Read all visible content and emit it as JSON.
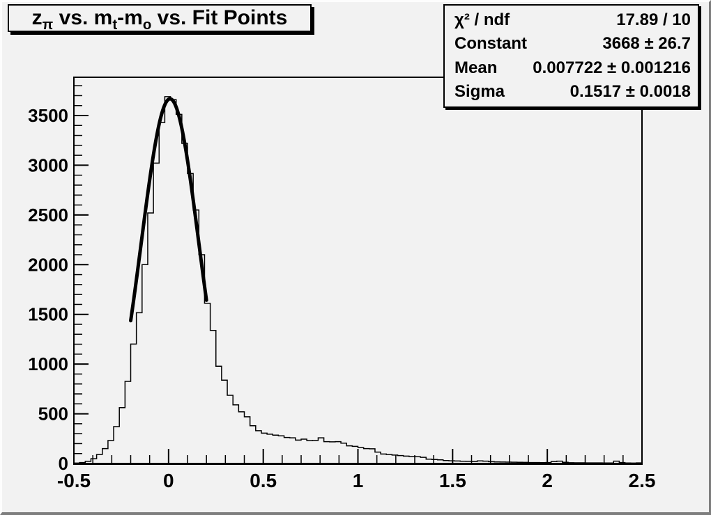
{
  "canvas": {
    "background": "#f2f2f2",
    "frame_color": "#000000",
    "histogram_line_color": "#000000",
    "fit_line_color": "#000000"
  },
  "title": {
    "plain": "z_pi vs. m_t-m_o vs. Fit Points",
    "segments": [
      {
        "text": "z",
        "sub": "π"
      },
      {
        "text": " vs. m",
        "sub": "t"
      },
      {
        "text": "-m",
        "sub": "o"
      },
      {
        "text": " vs. Fit Points",
        "sub": ""
      }
    ]
  },
  "stats": {
    "rows": [
      {
        "label": "χ² / ndf",
        "value": "17.89 / 10"
      },
      {
        "label": "Constant",
        "value": "3668 ± 26.7"
      },
      {
        "label": "Mean",
        "value": "0.007722 ± 0.001216"
      },
      {
        "label": "Sigma",
        "value": "0.1517 ± 0.0018"
      }
    ]
  },
  "chart_data": {
    "type": "bar",
    "subtype": "step-histogram-with-gaussian-fit",
    "title": "z_pi vs. m_t-m_o vs. Fit Points",
    "xlabel": "",
    "ylabel": "",
    "xlim": [
      -0.5,
      2.5
    ],
    "ylim": [
      0,
      3885
    ],
    "grid": false,
    "legend": null,
    "bin_start": -0.5,
    "bin_width": 0.03,
    "values": [
      4,
      10,
      22,
      48,
      90,
      150,
      231,
      371,
      562,
      826,
      1201,
      1516,
      2000,
      2520,
      3021,
      3430,
      3690,
      3660,
      3511,
      3220,
      2916,
      2550,
      2100,
      1612,
      1339,
      978,
      838,
      686,
      590,
      520,
      470,
      380,
      330,
      305,
      295,
      285,
      278,
      262,
      258,
      235,
      245,
      230,
      232,
      258,
      220,
      218,
      220,
      205,
      178,
      172,
      160,
      150,
      148,
      115,
      95,
      90,
      85,
      80,
      74,
      70,
      68,
      62,
      44,
      40,
      37,
      30,
      27,
      25,
      23,
      22,
      20,
      26,
      24,
      18,
      16,
      15,
      14,
      13,
      12,
      11,
      10,
      10,
      9,
      10,
      20,
      24,
      12,
      8,
      7,
      7,
      6,
      6,
      6,
      5,
      5,
      24,
      10,
      5,
      4,
      6
    ],
    "fit": {
      "function": "gaussian",
      "constant": 3668,
      "mean": 0.007722,
      "sigma": 0.1517,
      "chi2": 17.89,
      "ndf": 10,
      "draw_range": [
        -0.2,
        0.2
      ]
    },
    "x_major_ticks": [
      -0.5,
      0,
      0.5,
      1,
      1.5,
      2,
      2.5
    ],
    "x_major_labels": [
      "-0.5",
      "0",
      "0.5",
      "1",
      "1.5",
      "2",
      "2.5"
    ],
    "x_minor_step": 0.1,
    "y_major_ticks": [
      0,
      500,
      1000,
      1500,
      2000,
      2500,
      3000,
      3500
    ],
    "y_major_labels": [
      "0",
      "500",
      "1000",
      "1500",
      "2000",
      "2500",
      "3000",
      "3500"
    ],
    "y_minor_step": 100
  }
}
